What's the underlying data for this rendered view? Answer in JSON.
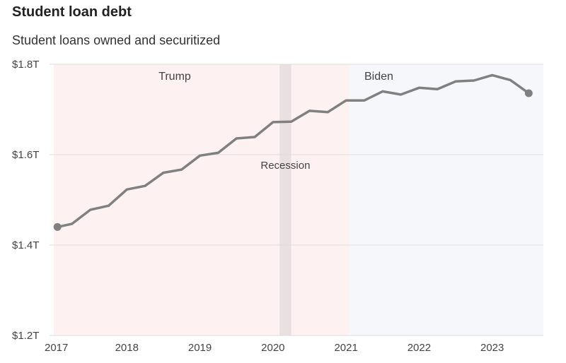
{
  "header": {
    "title": "Student loan debt",
    "subtitle": "Student loans owned and securitized"
  },
  "colors": {
    "trump_band": "#fdf1f1",
    "biden_band": "#f5f7fb",
    "recession_band": "#e9e1e1",
    "line": "#808080",
    "grid": "#dddddd"
  },
  "chart_data": {
    "type": "line",
    "title": "Student loan debt",
    "subtitle": "Student loans owned and securitized",
    "xlabel": "",
    "ylabel": "",
    "xlim": [
      2017.0,
      2023.7
    ],
    "ylim": [
      1.2,
      1.8
    ],
    "y_ticks": [
      {
        "value": 1.8,
        "label": "$1.8T"
      },
      {
        "value": 1.6,
        "label": "$1.6T"
      },
      {
        "value": 1.4,
        "label": "$1.4T"
      },
      {
        "value": 1.2,
        "label": "$1.2T"
      }
    ],
    "x_ticks": [
      {
        "value": 2017,
        "label": "2017"
      },
      {
        "value": 2018,
        "label": "2018"
      },
      {
        "value": 2019,
        "label": "2019"
      },
      {
        "value": 2020,
        "label": "2020"
      },
      {
        "value": 2021,
        "label": "2021"
      },
      {
        "value": 2022,
        "label": "2022"
      },
      {
        "value": 2023,
        "label": "2023"
      }
    ],
    "shaded_regions": [
      {
        "name": "trump",
        "label": "Trump",
        "start": 2017.0,
        "end": 2021.04,
        "color_key": "trump_band"
      },
      {
        "name": "biden",
        "label": "Biden",
        "start": 2021.04,
        "end": 2023.7,
        "color_key": "biden_band"
      },
      {
        "name": "recession",
        "label": "Recession",
        "start": 2020.09,
        "end": 2020.25,
        "color_key": "recession_band"
      }
    ],
    "series": [
      {
        "name": "Student loans",
        "x": [
          2017.05,
          2017.25,
          2017.5,
          2017.75,
          2018.0,
          2018.25,
          2018.5,
          2018.75,
          2019.0,
          2019.25,
          2019.5,
          2019.75,
          2020.0,
          2020.25,
          2020.5,
          2020.75,
          2021.0,
          2021.25,
          2021.5,
          2021.75,
          2022.0,
          2022.25,
          2022.5,
          2022.75,
          2023.0,
          2023.25,
          2023.5
        ],
        "values": [
          1.44,
          1.447,
          1.478,
          1.487,
          1.523,
          1.531,
          1.56,
          1.567,
          1.598,
          1.604,
          1.636,
          1.639,
          1.672,
          1.673,
          1.697,
          1.694,
          1.72,
          1.72,
          1.74,
          1.733,
          1.748,
          1.745,
          1.762,
          1.764,
          1.776,
          1.765,
          1.736
        ]
      }
    ]
  }
}
